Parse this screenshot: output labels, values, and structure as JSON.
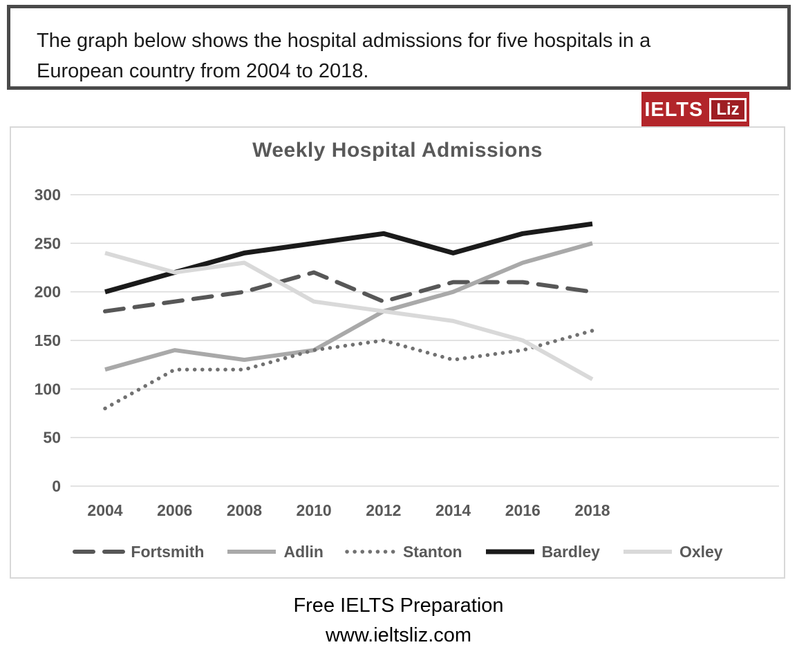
{
  "banner": {
    "lines": [
      "The graph below shows the hospital admissions for five hospitals in a",
      "European country from 2004 to 2018."
    ]
  },
  "logo": {
    "part1": "IELTS",
    "part2": "Liz",
    "bg_color": "#b2252a"
  },
  "chart_data": {
    "type": "line",
    "title": "Weekly Hospital Admissions",
    "x": [
      2004,
      2006,
      2008,
      2010,
      2012,
      2014,
      2016,
      2018
    ],
    "xlabel": "",
    "ylabel": "",
    "ylim": [
      0,
      300
    ],
    "ytick_step": 50,
    "grid": true,
    "gridline_color": "#d9d9d9",
    "legend_position": "bottom",
    "series": [
      {
        "name": "Fortsmith",
        "style": "dashed",
        "color": "#575757",
        "values": [
          180,
          190,
          200,
          220,
          190,
          210,
          210,
          200
        ]
      },
      {
        "name": "Adlin",
        "style": "solid",
        "color": "#a9a9a9",
        "values": [
          120,
          140,
          130,
          140,
          180,
          200,
          230,
          250
        ]
      },
      {
        "name": "Stanton",
        "style": "dotted",
        "color": "#717171",
        "values": [
          80,
          120,
          120,
          140,
          150,
          130,
          140,
          160
        ]
      },
      {
        "name": "Bardley",
        "style": "solid",
        "color": "#1a1a1a",
        "values": [
          200,
          220,
          240,
          250,
          260,
          240,
          260,
          270
        ]
      },
      {
        "name": "Oxley",
        "style": "solid",
        "color": "#d9d9d9",
        "values": [
          240,
          220,
          230,
          190,
          180,
          170,
          150,
          110
        ]
      }
    ]
  },
  "footer": {
    "line1": "Free IELTS Preparation",
    "line2": "www.ieltsliz.com"
  }
}
